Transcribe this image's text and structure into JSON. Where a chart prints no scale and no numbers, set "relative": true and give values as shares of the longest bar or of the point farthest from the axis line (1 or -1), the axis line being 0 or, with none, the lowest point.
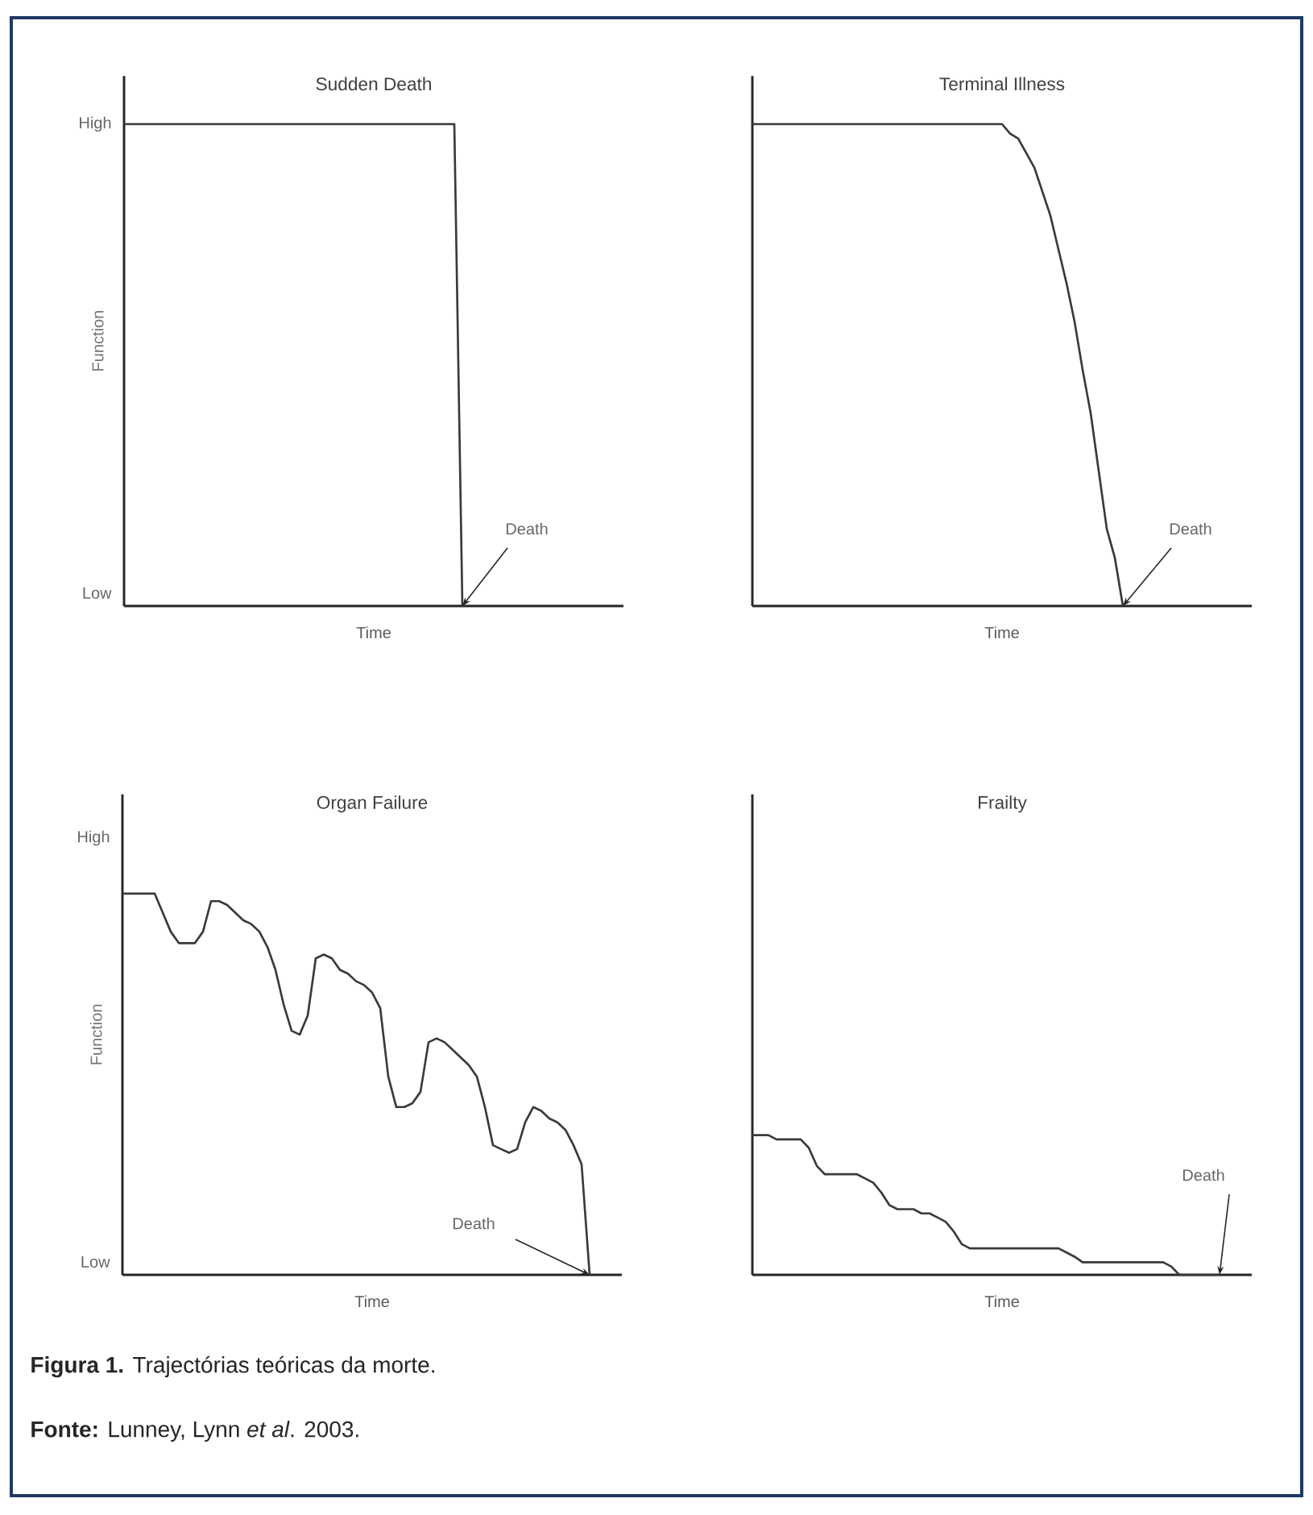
{
  "chart_data": [
    {
      "type": "line",
      "title": "Sudden Death",
      "xlabel": "Time",
      "ylabel": "Function",
      "relative": true,
      "categories": [
        null,
        null,
        null,
        null,
        null,
        null,
        null,
        null,
        null,
        null,
        null,
        null,
        null,
        null,
        null,
        null,
        null,
        null,
        null,
        null,
        null,
        null,
        null,
        null,
        null,
        null,
        null,
        null,
        null,
        null,
        null,
        null,
        null,
        null,
        null,
        null,
        null,
        null,
        null,
        null,
        null,
        null,
        null,
        null,
        null,
        null,
        null,
        null,
        null,
        null,
        null,
        null,
        null,
        null,
        null,
        null,
        null,
        null,
        null,
        null,
        null,
        null,
        null
      ],
      "series": [
        {
          "color": "#3a3a3a",
          "values": [
            1,
            1,
            1,
            1,
            1,
            1,
            1,
            1,
            1,
            1,
            1,
            1,
            1,
            1,
            1,
            1,
            1,
            1,
            1,
            1,
            1,
            1,
            1,
            1,
            1,
            1,
            1,
            1,
            1,
            1,
            1,
            1,
            1,
            1,
            1,
            1,
            1,
            1,
            1,
            1,
            1,
            1,
            0,
            null,
            null,
            null,
            null,
            null,
            null,
            null,
            null,
            null,
            null,
            null,
            null,
            null,
            null,
            null,
            null,
            null,
            null,
            null,
            null
          ]
        }
      ],
      "annotations": [
        "High",
        "Low",
        "Death"
      ]
    },
    {
      "type": "line",
      "title": "Terminal Illness",
      "xlabel": "Time",
      "relative": true,
      "categories": [
        null,
        null,
        null,
        null,
        null,
        null,
        null,
        null,
        null,
        null,
        null,
        null,
        null,
        null,
        null,
        null,
        null,
        null,
        null,
        null,
        null,
        null,
        null,
        null,
        null,
        null,
        null,
        null,
        null,
        null,
        null,
        null,
        null,
        null,
        null,
        null,
        null,
        null,
        null,
        null,
        null,
        null,
        null,
        null,
        null,
        null,
        null,
        null,
        null,
        null,
        null,
        null,
        null,
        null,
        null,
        null,
        null,
        null,
        null,
        null,
        null,
        null,
        null
      ],
      "series": [
        {
          "color": "#3a3a3a",
          "values": [
            1,
            1,
            1,
            1,
            1,
            1,
            1,
            1,
            1,
            1,
            1,
            1,
            1,
            1,
            1,
            1,
            1,
            1,
            1,
            1,
            1,
            1,
            1,
            1,
            1,
            1,
            1,
            1,
            1,
            1,
            1,
            1,
            0.98,
            0.97,
            0.94,
            0.91,
            0.86,
            0.81,
            0.74,
            0.67,
            0.59,
            0.49,
            0.4,
            0.28,
            0.16,
            0.1,
            0,
            null,
            null,
            null,
            null,
            null,
            null,
            null,
            null,
            null,
            null,
            null,
            null,
            null,
            null,
            null,
            null
          ]
        }
      ],
      "annotations": [
        "Death"
      ]
    },
    {
      "type": "line",
      "title": "Organ Failure",
      "xlabel": "Time",
      "ylabel": "Function",
      "relative": true,
      "categories": [
        null,
        null,
        null,
        null,
        null,
        null,
        null,
        null,
        null,
        null,
        null,
        null,
        null,
        null,
        null,
        null,
        null,
        null,
        null,
        null,
        null,
        null,
        null,
        null,
        null,
        null,
        null,
        null,
        null,
        null,
        null,
        null,
        null,
        null,
        null,
        null,
        null,
        null,
        null,
        null,
        null,
        null,
        null,
        null,
        null,
        null,
        null,
        null,
        null,
        null,
        null,
        null,
        null,
        null,
        null,
        null,
        null,
        null,
        null,
        null,
        null,
        null,
        null
      ],
      "series": [
        {
          "color": "#3a3a3a",
          "values": [
            1,
            1,
            1,
            1,
            1,
            0.95,
            0.9,
            0.87,
            0.87,
            0.87,
            0.9,
            0.98,
            0.98,
            0.97,
            0.95,
            0.93,
            0.92,
            0.9,
            0.86,
            0.8,
            0.71,
            0.64,
            0.63,
            0.68,
            0.83,
            0.84,
            0.83,
            0.8,
            0.79,
            0.77,
            0.76,
            0.74,
            0.7,
            0.52,
            0.44,
            0.44,
            0.45,
            0.48,
            0.61,
            0.62,
            0.61,
            0.59,
            0.57,
            0.55,
            0.52,
            0.44,
            0.34,
            0.33,
            0.32,
            0.33,
            0.4,
            0.44,
            0.43,
            0.41,
            0.4,
            0.38,
            0.34,
            0.29,
            0,
            null,
            null,
            null,
            null
          ]
        }
      ],
      "annotations": [
        "High",
        "Low",
        "Death"
      ]
    },
    {
      "type": "line",
      "title": "Frailty",
      "xlabel": "Time",
      "relative": true,
      "categories": [
        null,
        null,
        null,
        null,
        null,
        null,
        null,
        null,
        null,
        null,
        null,
        null,
        null,
        null,
        null,
        null,
        null,
        null,
        null,
        null,
        null,
        null,
        null,
        null,
        null,
        null,
        null,
        null,
        null,
        null,
        null,
        null,
        null,
        null,
        null,
        null,
        null,
        null,
        null,
        null,
        null,
        null,
        null,
        null,
        null,
        null,
        null,
        null,
        null,
        null,
        null,
        null,
        null,
        null,
        null,
        null,
        null,
        null,
        null,
        null,
        null,
        null,
        null
      ],
      "series": [
        {
          "color": "#3a3a3a",
          "values": [
            1,
            1,
            1,
            0.97,
            0.97,
            0.97,
            0.97,
            0.91,
            0.78,
            0.72,
            0.72,
            0.72,
            0.72,
            0.72,
            0.69,
            0.66,
            0.59,
            0.5,
            0.47,
            0.47,
            0.47,
            0.44,
            0.44,
            0.41,
            0.38,
            0.31,
            0.22,
            0.19,
            0.19,
            0.19,
            0.19,
            0.19,
            0.19,
            0.19,
            0.19,
            0.19,
            0.19,
            0.19,
            0.19,
            0.16,
            0.13,
            0.09,
            0.09,
            0.09,
            0.09,
            0.09,
            0.09,
            0.09,
            0.09,
            0.09,
            0.09,
            0.09,
            0.06,
            0,
            0,
            0,
            0,
            0,
            0,
            null,
            null,
            null,
            null
          ]
        }
      ],
      "annotations": [
        "Death",
        "**Figura 1.** Trajectórias teóricas da morte.",
        "**Fonte:** Lunney, Lynn *et al*. 2003."
      ]
    }
  ]
}
